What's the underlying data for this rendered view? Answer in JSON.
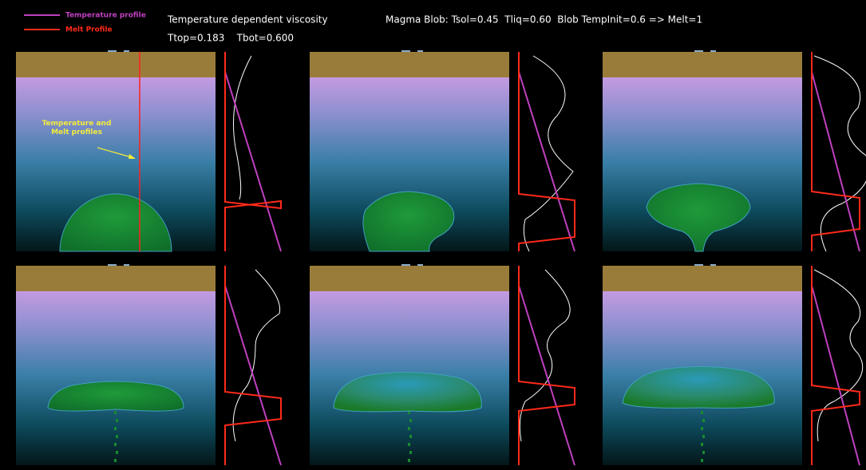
{
  "legend": [
    {
      "label": "Temperature profile",
      "color": "#c040c0"
    },
    {
      "label": "Melt Profile",
      "color": "#ff2a1a"
    }
  ],
  "header": {
    "title": "Temperature dependent viscosity",
    "blob": "Magma Blob: Tsol=0.45  Tliq=0.60  Blob TempInit=0.6 => Melt=1",
    "boundary": "Ttop=0.183    Tbot=0.600"
  },
  "annotation": "Temperature and Melt profiles"
}
